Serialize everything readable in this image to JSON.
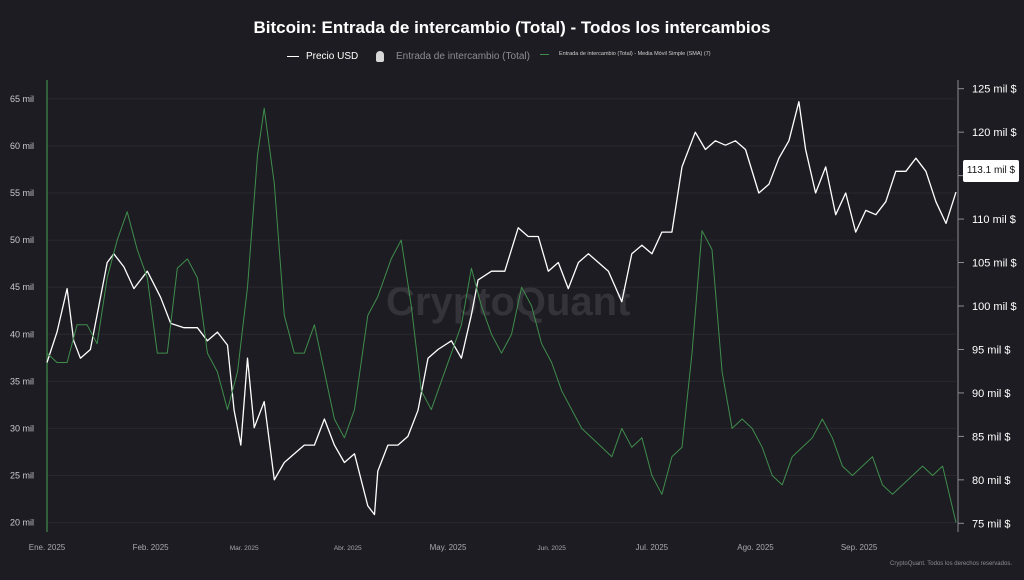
{
  "chart_data": {
    "type": "line",
    "title": "Bitcoin: Entrada de intercambio (Total) - Todos los intercambios",
    "legend": [
      {
        "key": "price",
        "label": "Precio USD",
        "color": "#ffffff"
      },
      {
        "key": "inflow",
        "label": "Entrada de intercambio (Total)",
        "color": "#d8d8d8"
      },
      {
        "key": "sma",
        "label": "Entrada de intercambio (Total) - Media Móvil Simple (SMA) (7)",
        "color": "#3f8d4c"
      }
    ],
    "legend_placement": "top-center",
    "x_tick_labels": [
      "Ene. 2025",
      "Feb. 2025",
      "Mar. 2025",
      "Abr. 2025",
      "May. 2025",
      "Jun. 2025",
      "Jul. 2025",
      "Ago. 2025",
      "Sep. 2025"
    ],
    "x_range": [
      "2025-01-01",
      "2025-09-30"
    ],
    "y_left": {
      "ticks": [
        20,
        25,
        30,
        35,
        40,
        45,
        50,
        55,
        60,
        65
      ],
      "tick_labels": [
        "20 mil",
        "25 mil",
        "30 mil",
        "35 mil",
        "40 mil",
        "45 mil",
        "50 mil",
        "55 mil",
        "60 mil",
        "65 mil"
      ],
      "range": [
        19000,
        67000
      ]
    },
    "y_right": {
      "ticks": [
        75,
        80,
        85,
        90,
        95,
        100,
        105,
        110,
        115,
        120,
        125
      ],
      "tick_labels": [
        "75 mil $",
        "80 mil $",
        "85 mil $",
        "90 mil $",
        "95 mil $",
        "100 mil $",
        "105 mil $",
        "110 mil $",
        "115 mil $",
        "120 mil $",
        "125 mil $"
      ],
      "range": [
        74000,
        126000
      ]
    },
    "current_price_label": "113.1 mil $",
    "grid": "horizontal",
    "series": [
      {
        "name": "Precio USD",
        "axis": "right",
        "color": "#ffffff",
        "points": [
          [
            "2025-01-01",
            93.5
          ],
          [
            "2025-01-04",
            97
          ],
          [
            "2025-01-07",
            102
          ],
          [
            "2025-01-09",
            96
          ],
          [
            "2025-01-11",
            94
          ],
          [
            "2025-01-14",
            95
          ],
          [
            "2025-01-17",
            101
          ],
          [
            "2025-01-19",
            105
          ],
          [
            "2025-01-21",
            106
          ],
          [
            "2025-01-24",
            104.5
          ],
          [
            "2025-01-27",
            102
          ],
          [
            "2025-01-31",
            104
          ],
          [
            "2025-02-04",
            101
          ],
          [
            "2025-02-07",
            98
          ],
          [
            "2025-02-11",
            97.5
          ],
          [
            "2025-02-15",
            97.5
          ],
          [
            "2025-02-18",
            96
          ],
          [
            "2025-02-21",
            97
          ],
          [
            "2025-02-24",
            95.5
          ],
          [
            "2025-02-26",
            88
          ],
          [
            "2025-02-28",
            84
          ],
          [
            "2025-03-02",
            94
          ],
          [
            "2025-03-04",
            86
          ],
          [
            "2025-03-07",
            89
          ],
          [
            "2025-03-10",
            80
          ],
          [
            "2025-03-13",
            82
          ],
          [
            "2025-03-16",
            83
          ],
          [
            "2025-03-19",
            84
          ],
          [
            "2025-03-22",
            84
          ],
          [
            "2025-03-25",
            87
          ],
          [
            "2025-03-28",
            84
          ],
          [
            "2025-03-31",
            82
          ],
          [
            "2025-04-03",
            83
          ],
          [
            "2025-04-07",
            77
          ],
          [
            "2025-04-09",
            76
          ],
          [
            "2025-04-10",
            81
          ],
          [
            "2025-04-13",
            84
          ],
          [
            "2025-04-16",
            84
          ],
          [
            "2025-04-19",
            85
          ],
          [
            "2025-04-22",
            88
          ],
          [
            "2025-04-25",
            94
          ],
          [
            "2025-04-28",
            95
          ],
          [
            "2025-05-02",
            96
          ],
          [
            "2025-05-05",
            94
          ],
          [
            "2025-05-08",
            99
          ],
          [
            "2025-05-10",
            103
          ],
          [
            "2025-05-14",
            104
          ],
          [
            "2025-05-18",
            104
          ],
          [
            "2025-05-22",
            109
          ],
          [
            "2025-05-25",
            108
          ],
          [
            "2025-05-28",
            108
          ],
          [
            "2025-05-31",
            104
          ],
          [
            "2025-06-03",
            105
          ],
          [
            "2025-06-06",
            102
          ],
          [
            "2025-06-09",
            105
          ],
          [
            "2025-06-12",
            106
          ],
          [
            "2025-06-15",
            105
          ],
          [
            "2025-06-18",
            104
          ],
          [
            "2025-06-22",
            100.5
          ],
          [
            "2025-06-25",
            106
          ],
          [
            "2025-06-28",
            107
          ],
          [
            "2025-07-01",
            106
          ],
          [
            "2025-07-04",
            108.5
          ],
          [
            "2025-07-07",
            108.5
          ],
          [
            "2025-07-10",
            116
          ],
          [
            "2025-07-14",
            120
          ],
          [
            "2025-07-17",
            118
          ],
          [
            "2025-07-20",
            119
          ],
          [
            "2025-07-23",
            118.5
          ],
          [
            "2025-07-26",
            119
          ],
          [
            "2025-07-29",
            118
          ],
          [
            "2025-08-02",
            113
          ],
          [
            "2025-08-05",
            114
          ],
          [
            "2025-08-08",
            117
          ],
          [
            "2025-08-11",
            119
          ],
          [
            "2025-08-14",
            123.5
          ],
          [
            "2025-08-16",
            118
          ],
          [
            "2025-08-19",
            113
          ],
          [
            "2025-08-22",
            116
          ],
          [
            "2025-08-25",
            110.5
          ],
          [
            "2025-08-28",
            113
          ],
          [
            "2025-08-31",
            108.5
          ],
          [
            "2025-09-03",
            111
          ],
          [
            "2025-09-06",
            110.5
          ],
          [
            "2025-09-09",
            112
          ],
          [
            "2025-09-12",
            115.5
          ],
          [
            "2025-09-15",
            115.5
          ],
          [
            "2025-09-18",
            117
          ],
          [
            "2025-09-21",
            115.5
          ],
          [
            "2025-09-24",
            112
          ],
          [
            "2025-09-27",
            109.5
          ],
          [
            "2025-09-30",
            113.1
          ]
        ]
      },
      {
        "name": "Entrada de intercambio (Total) - Media Móvil Simple (SMA) (7)",
        "axis": "left",
        "color": "#3f8d4c",
        "points": [
          [
            "2025-01-01",
            38
          ],
          [
            "2025-01-04",
            37
          ],
          [
            "2025-01-07",
            37
          ],
          [
            "2025-01-10",
            41
          ],
          [
            "2025-01-13",
            41
          ],
          [
            "2025-01-16",
            39
          ],
          [
            "2025-01-19",
            46
          ],
          [
            "2025-01-22",
            50
          ],
          [
            "2025-01-25",
            53
          ],
          [
            "2025-01-28",
            49
          ],
          [
            "2025-01-31",
            46
          ],
          [
            "2025-02-03",
            38
          ],
          [
            "2025-02-06",
            38
          ],
          [
            "2025-02-09",
            47
          ],
          [
            "2025-02-12",
            48
          ],
          [
            "2025-02-15",
            46
          ],
          [
            "2025-02-18",
            38
          ],
          [
            "2025-02-21",
            36
          ],
          [
            "2025-02-24",
            32
          ],
          [
            "2025-02-27",
            36
          ],
          [
            "2025-03-02",
            45
          ],
          [
            "2025-03-05",
            59
          ],
          [
            "2025-03-07",
            64
          ],
          [
            "2025-03-10",
            56
          ],
          [
            "2025-03-13",
            42
          ],
          [
            "2025-03-16",
            38
          ],
          [
            "2025-03-19",
            38
          ],
          [
            "2025-03-22",
            41
          ],
          [
            "2025-03-25",
            36
          ],
          [
            "2025-03-28",
            31
          ],
          [
            "2025-03-31",
            29
          ],
          [
            "2025-04-03",
            32
          ],
          [
            "2025-04-07",
            42
          ],
          [
            "2025-04-10",
            44
          ],
          [
            "2025-04-14",
            48
          ],
          [
            "2025-04-17",
            50
          ],
          [
            "2025-04-20",
            43
          ],
          [
            "2025-04-23",
            34
          ],
          [
            "2025-04-26",
            32
          ],
          [
            "2025-04-29",
            35
          ],
          [
            "2025-05-02",
            38
          ],
          [
            "2025-05-05",
            41
          ],
          [
            "2025-05-08",
            47
          ],
          [
            "2025-05-11",
            43
          ],
          [
            "2025-05-14",
            40
          ],
          [
            "2025-05-17",
            38
          ],
          [
            "2025-05-20",
            40
          ],
          [
            "2025-05-23",
            45
          ],
          [
            "2025-05-26",
            43
          ],
          [
            "2025-05-29",
            39
          ],
          [
            "2025-06-01",
            37
          ],
          [
            "2025-06-04",
            34
          ],
          [
            "2025-06-07",
            32
          ],
          [
            "2025-06-10",
            30
          ],
          [
            "2025-06-13",
            29
          ],
          [
            "2025-06-16",
            28
          ],
          [
            "2025-06-19",
            27
          ],
          [
            "2025-06-22",
            30
          ],
          [
            "2025-06-25",
            28
          ],
          [
            "2025-06-28",
            29
          ],
          [
            "2025-07-01",
            25
          ],
          [
            "2025-07-04",
            23
          ],
          [
            "2025-07-07",
            27
          ],
          [
            "2025-07-10",
            28
          ],
          [
            "2025-07-13",
            38
          ],
          [
            "2025-07-16",
            51
          ],
          [
            "2025-07-19",
            49
          ],
          [
            "2025-07-22",
            36
          ],
          [
            "2025-07-25",
            30
          ],
          [
            "2025-07-28",
            31
          ],
          [
            "2025-07-31",
            30
          ],
          [
            "2025-08-03",
            28
          ],
          [
            "2025-08-06",
            25
          ],
          [
            "2025-08-09",
            24
          ],
          [
            "2025-08-12",
            27
          ],
          [
            "2025-08-15",
            28
          ],
          [
            "2025-08-18",
            29
          ],
          [
            "2025-08-21",
            31
          ],
          [
            "2025-08-24",
            29
          ],
          [
            "2025-08-27",
            26
          ],
          [
            "2025-08-30",
            25
          ],
          [
            "2025-09-02",
            26
          ],
          [
            "2025-09-05",
            27
          ],
          [
            "2025-09-08",
            24
          ],
          [
            "2025-09-11",
            23
          ],
          [
            "2025-09-14",
            24
          ],
          [
            "2025-09-17",
            25
          ],
          [
            "2025-09-20",
            26
          ],
          [
            "2025-09-23",
            25
          ],
          [
            "2025-09-26",
            26
          ],
          [
            "2025-09-30",
            20
          ]
        ]
      }
    ]
  },
  "copyright": "CryptoQuant. Todos los derechos reservados.",
  "watermark": "CryptoQuant"
}
